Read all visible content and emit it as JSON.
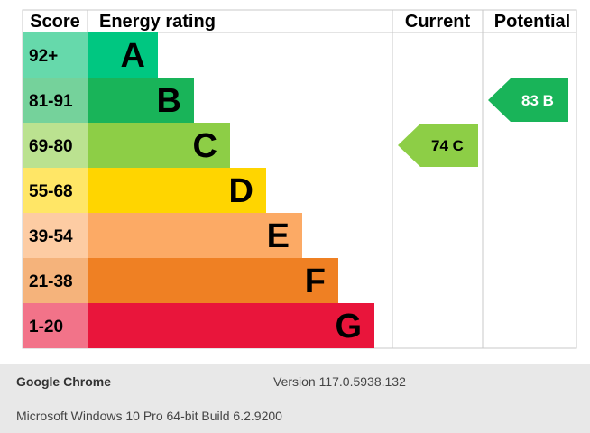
{
  "chart_data": {
    "type": "energy-rating",
    "headers": {
      "score": "Score",
      "rating": "Energy rating",
      "current": "Current",
      "potential": "Potential"
    },
    "bands": [
      {
        "letter": "A",
        "range": "92+",
        "color": "#00c781",
        "score_color": "#66d9ab"
      },
      {
        "letter": "B",
        "range": "81-91",
        "color": "#19b459",
        "score_color": "#75d29b"
      },
      {
        "letter": "C",
        "range": "69-80",
        "color": "#8dce46",
        "score_color": "#bbe290"
      },
      {
        "letter": "D",
        "range": "55-68",
        "color": "#ffd500",
        "score_color": "#ffe666"
      },
      {
        "letter": "E",
        "range": "39-54",
        "color": "#fcaa65",
        "score_color": "#fdcca3"
      },
      {
        "letter": "F",
        "range": "21-38",
        "color": "#ef8023",
        "score_color": "#f5b37b"
      },
      {
        "letter": "G",
        "range": "1-20",
        "color": "#e9153b",
        "score_color": "#f27389"
      }
    ],
    "current": {
      "value": 74,
      "band": "C",
      "label": "74  C",
      "color": "#8dce46"
    },
    "potential": {
      "value": 83,
      "band": "B",
      "label": "83  B",
      "color": "#19b459"
    }
  },
  "footer": {
    "browser": "Google Chrome",
    "version": "Version 117.0.5938.132",
    "os": "Microsoft Windows 10 Pro 64-bit Build 6.2.9200"
  }
}
